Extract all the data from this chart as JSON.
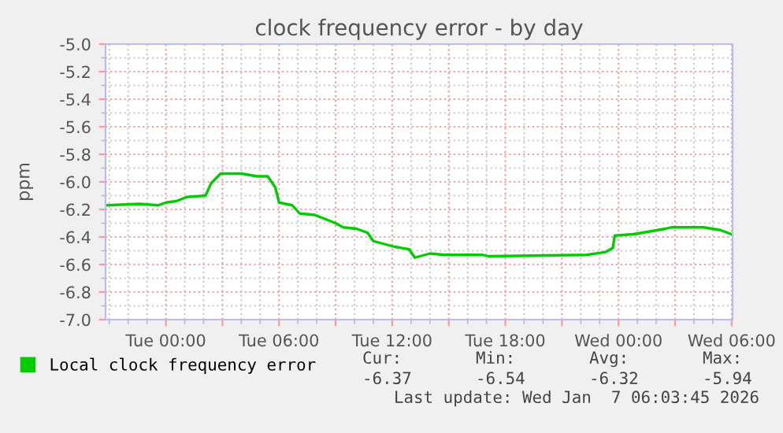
{
  "chart_data": {
    "type": "line",
    "title": "clock frequency error - by day",
    "ylabel": "ppm",
    "x": [
      "2026-01-05T20:54",
      "2026-01-05T22:36",
      "2026-01-05T23:36",
      "2026-01-06T00:00",
      "2026-01-06T00:33",
      "2026-01-06T01:06",
      "2026-01-06T02:06",
      "2026-01-06T02:24",
      "2026-01-06T02:54",
      "2026-01-06T04:00",
      "2026-01-06T04:51",
      "2026-01-06T05:24",
      "2026-01-06T05:48",
      "2026-01-06T06:00",
      "2026-01-06T06:42",
      "2026-01-06T07:06",
      "2026-01-06T07:54",
      "2026-01-06T09:00",
      "2026-01-06T09:24",
      "2026-01-06T10:06",
      "2026-01-06T10:42",
      "2026-01-06T11:00",
      "2026-01-06T12:06",
      "2026-01-06T12:54",
      "2026-01-06T13:12",
      "2026-01-06T14:00",
      "2026-01-06T14:48",
      "2026-01-06T16:48",
      "2026-01-06T17:06",
      "2026-01-06T22:18",
      "2026-01-06T23:18",
      "2026-01-06T23:42",
      "2026-01-06T23:48",
      "2026-01-07T00:48",
      "2026-01-07T02:30",
      "2026-01-07T02:48",
      "2026-01-07T04:30",
      "2026-01-07T05:24",
      "2026-01-07T06:00"
    ],
    "series": [
      {
        "name": "Local clock frequency error",
        "color": "#00cc00",
        "values": [
          -6.17,
          -6.16,
          -6.17,
          -6.15,
          -6.14,
          -6.11,
          -6.1,
          -6.01,
          -5.94,
          -5.94,
          -5.96,
          -5.96,
          -6.04,
          -6.15,
          -6.17,
          -6.23,
          -6.24,
          -6.3,
          -6.33,
          -6.34,
          -6.37,
          -6.43,
          -6.47,
          -6.49,
          -6.55,
          -6.52,
          -6.53,
          -6.53,
          -6.54,
          -6.53,
          -6.51,
          -6.48,
          -6.39,
          -6.38,
          -6.34,
          -6.33,
          -6.33,
          -6.35,
          -6.38
        ]
      }
    ],
    "xlim": [
      "2026-01-05T20:48",
      "2026-01-07T06:03"
    ],
    "ylim": [
      -7.0,
      -5.0
    ],
    "xticks": [
      {
        "value": "2026-01-06T00:00",
        "label": "Tue 00:00"
      },
      {
        "value": "2026-01-06T03:00",
        "label": null
      },
      {
        "value": "2026-01-06T06:00",
        "label": "Tue 06:00"
      },
      {
        "value": "2026-01-06T09:00",
        "label": null
      },
      {
        "value": "2026-01-06T12:00",
        "label": "Tue 12:00"
      },
      {
        "value": "2026-01-06T15:00",
        "label": null
      },
      {
        "value": "2026-01-06T18:00",
        "label": "Tue 18:00"
      },
      {
        "value": "2026-01-06T21:00",
        "label": null
      },
      {
        "value": "2026-01-07T00:00",
        "label": "Wed 00:00"
      },
      {
        "value": "2026-01-07T03:00",
        "label": null
      },
      {
        "value": "2026-01-07T06:00",
        "label": "Wed 06:00"
      }
    ],
    "yticks": [
      {
        "value": -7.0,
        "label": "-7.0"
      },
      -6.8,
      -6.6,
      -6.4,
      -6.2,
      {
        "value": -6.0,
        "label": "-6.0"
      },
      -5.8,
      -5.6,
      -5.4,
      -5.2,
      {
        "value": -5.0,
        "label": "-5.0"
      }
    ],
    "grid": true,
    "legend": "bottom left",
    "marker": "none",
    "line_style": "solid",
    "annotations": [
      "Cur:",
      "Min:",
      "Avg:",
      "Max:",
      "-6.37",
      "-6.54",
      "-6.32",
      "-5.94",
      "Last update: Wed Jan  7 06:03:45 2026"
    ]
  }
}
